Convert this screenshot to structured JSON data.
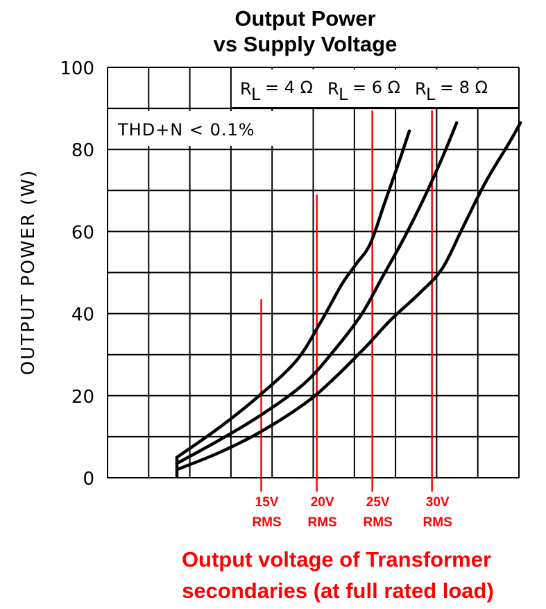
{
  "chart_data": {
    "type": "line",
    "title_line1": "Output Power",
    "title_line2": "vs Supply Voltage",
    "ylabel": "OUTPUT POWER (W)",
    "xlabel": "",
    "ylim": [
      0,
      100
    ],
    "yticks": [
      "0",
      "20",
      "40",
      "60",
      "80",
      "100"
    ],
    "annotation": "THD+N < 0.1%",
    "legend": {
      "r4": {
        "main": "R",
        "sub": "L",
        "value": "= 4 Ω"
      },
      "r6": {
        "main": "R",
        "sub": "L",
        "value": "= 6 Ω"
      },
      "r8": {
        "main": "R",
        "sub": "L",
        "value": "= 8 Ω"
      }
    },
    "series": [
      {
        "name": "RL = 4Ω",
        "points": [
          [
            0,
            5
          ],
          [
            1.0,
            12
          ],
          [
            2.0,
            20
          ],
          [
            2.9,
            28.5
          ],
          [
            3.5,
            38
          ],
          [
            4.0,
            47
          ],
          [
            4.35,
            52
          ],
          [
            4.7,
            57
          ],
          [
            5.05,
            67
          ],
          [
            5.4,
            77
          ],
          [
            5.65,
            84.5
          ]
        ]
      },
      {
        "name": "RL = 6Ω",
        "points": [
          [
            0,
            3.5
          ],
          [
            1.0,
            9
          ],
          [
            2.0,
            15
          ],
          [
            3.1,
            23
          ],
          [
            3.9,
            32
          ],
          [
            4.5,
            40
          ],
          [
            5.0,
            49
          ],
          [
            5.5,
            58
          ],
          [
            6.0,
            68
          ],
          [
            6.45,
            78
          ],
          [
            6.8,
            86.5
          ]
        ]
      },
      {
        "name": "RL = 8Ω",
        "points": [
          [
            0,
            2
          ],
          [
            1.0,
            6
          ],
          [
            2.0,
            11
          ],
          [
            3.1,
            18
          ],
          [
            3.8,
            24
          ],
          [
            4.6,
            32
          ],
          [
            5.2,
            38.5
          ],
          [
            5.9,
            45
          ],
          [
            6.45,
            51
          ],
          [
            6.95,
            61
          ],
          [
            7.5,
            72
          ],
          [
            8.1,
            82
          ],
          [
            8.35,
            86.5
          ]
        ]
      }
    ],
    "reference_lines": [
      {
        "label1": "15V",
        "label2": "RMS",
        "x": 2.05,
        "y_top": 43.5
      },
      {
        "label1": "20V",
        "label2": "RMS",
        "x": 3.4,
        "y_top": 69
      },
      {
        "label1": "25V",
        "label2": "RMS",
        "x": 4.75,
        "y_top": 89.5
      },
      {
        "label1": "30V",
        "label2": "RMS",
        "x": 6.2,
        "y_top": 89.5
      }
    ],
    "grid": true,
    "caption_line1": "Output voltage of Transformer",
    "caption_line2": "secondaries (at full rated load)"
  },
  "colors": {
    "curve": "#000000",
    "grid": "#000000",
    "reference": "#ff0000"
  }
}
